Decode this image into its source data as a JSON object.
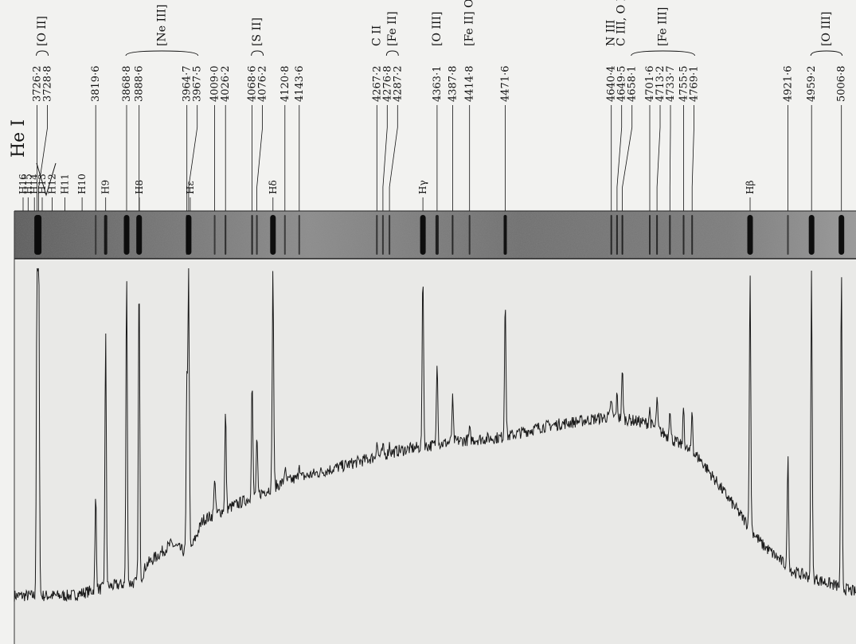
{
  "chart_data": {
    "type": "line",
    "title": "",
    "xlabel": "",
    "ylabel": "",
    "lines": [
      {
        "label": "3726·2",
        "wavelength": 3726.2,
        "ion": "[O II]",
        "peak": 0.99
      },
      {
        "label": "3728·8",
        "wavelength": 3728.8,
        "ion": "[O II]",
        "peak": 0.99
      },
      {
        "label": "3819·6",
        "wavelength": 3819.6,
        "ion": "",
        "peak": 0.34
      },
      {
        "label": "3868·8",
        "wavelength": 3868.8,
        "ion": "[Ne III]",
        "peak": 0.98
      },
      {
        "label": "3888·6",
        "wavelength": 3888.6,
        "ion": "",
        "peak": 0.97
      },
      {
        "label": "3964·7",
        "wavelength": 3964.7,
        "ion": "",
        "peak": 0.66
      },
      {
        "label": "3967·5",
        "wavelength": 3967.5,
        "ion": "[Ne III]",
        "peak": 0.98
      },
      {
        "label": "4009·0",
        "wavelength": 4009.0,
        "ion": "",
        "peak": 0.4
      },
      {
        "label": "4026·2",
        "wavelength": 4026.2,
        "ion": "",
        "peak": 0.58
      },
      {
        "label": "4068·6",
        "wavelength": 4068.6,
        "ion": "[S II]",
        "peak": 0.67
      },
      {
        "label": "4076·2",
        "wavelength": 4076.2,
        "ion": "[S II]",
        "peak": 0.5
      },
      {
        "label": "4120·8",
        "wavelength": 4120.8,
        "ion": "",
        "peak": 0.42
      },
      {
        "label": "4143·6",
        "wavelength": 4143.6,
        "ion": "",
        "peak": 0.44
      },
      {
        "label": "4267·2",
        "wavelength": 4267.2,
        "ion": "C II",
        "peak": 0.5
      },
      {
        "label": "4276·8",
        "wavelength": 4276.8,
        "ion": "[Fe II]",
        "peak": 0.48
      },
      {
        "label": "4287·2",
        "wavelength": 4287.2,
        "ion": "[Fe II]",
        "peak": 0.49
      },
      {
        "label": "4363·1",
        "wavelength": 4363.1,
        "ion": "[O III]",
        "peak": 0.74
      },
      {
        "label": "4387·8",
        "wavelength": 4387.8,
        "ion": "",
        "peak": 0.62
      },
      {
        "label": "4414·8",
        "wavelength": 4414.8,
        "ion": "[Fe II] O II",
        "peak": 0.53
      },
      {
        "label": "4471·6",
        "wavelength": 4471.6,
        "ion": "",
        "peak": 0.92
      },
      {
        "label": "4640·4",
        "wavelength": 4640.4,
        "ion": "N III",
        "peak": 0.62
      },
      {
        "label": "4649·5",
        "wavelength": 4649.5,
        "ion": "C III, O II",
        "peak": 0.63
      },
      {
        "label": "4658·1",
        "wavelength": 4658.1,
        "ion": "[Fe III]",
        "peak": 0.7
      },
      {
        "label": "4701·6",
        "wavelength": 4701.6,
        "ion": "[Fe III]",
        "peak": 0.59
      },
      {
        "label": "4713·2",
        "wavelength": 4713.2,
        "ion": "",
        "peak": 0.62
      },
      {
        "label": "4733·7",
        "wavelength": 4733.7,
        "ion": "[Fe III]",
        "peak": 0.6
      },
      {
        "label": "4755·5",
        "wavelength": 4755.5,
        "ion": "[Fe III]",
        "peak": 0.6
      },
      {
        "label": "4769·1",
        "wavelength": 4769.1,
        "ion": "[Fe III]",
        "peak": 0.59
      },
      {
        "label": "4921·6",
        "wavelength": 4921.6,
        "ion": "",
        "peak": 0.45
      },
      {
        "label": "4959·2",
        "wavelength": 4959.2,
        "ion": "[O III]",
        "peak": 0.98
      },
      {
        "label": "5006·8",
        "wavelength": 5006.8,
        "ion": "[O III]",
        "peak": 0.98
      }
    ],
    "hydrogen": [
      {
        "label": "H16",
        "wavelength": 3703.9
      },
      {
        "label": "H15",
        "wavelength": 3711.97
      },
      {
        "label": "H14",
        "wavelength": 3721.94
      },
      {
        "label": "H13",
        "wavelength": 3734.37
      },
      {
        "label": "H12",
        "wavelength": 3750.15
      },
      {
        "label": "H11",
        "wavelength": 3770.63
      },
      {
        "label": "H10",
        "wavelength": 3797.9
      },
      {
        "label": "H9",
        "wavelength": 3835.39,
        "peak": 0.8
      },
      {
        "label": "H8",
        "wavelength": 3889.05
      },
      {
        "label": "Hε",
        "wavelength": 3970.07
      },
      {
        "label": "Hδ",
        "wavelength": 4101.74,
        "peak": 0.99
      },
      {
        "label": "Hγ",
        "wavelength": 4340.47,
        "peak": 0.99
      },
      {
        "label": "Hβ",
        "wavelength": 4861.33,
        "peak": 0.98
      }
    ],
    "he_label": "He I",
    "xlim": [
      3690,
      5030
    ],
    "continuum": [
      {
        "x": 3690,
        "y": 0.05
      },
      {
        "x": 3780,
        "y": 0.05
      },
      {
        "x": 3850,
        "y": 0.08
      },
      {
        "x": 3890,
        "y": 0.09
      },
      {
        "x": 3900,
        "y": 0.14
      },
      {
        "x": 3940,
        "y": 0.2
      },
      {
        "x": 3968,
        "y": 0.17
      },
      {
        "x": 3990,
        "y": 0.27
      },
      {
        "x": 4050,
        "y": 0.32
      },
      {
        "x": 4120,
        "y": 0.38
      },
      {
        "x": 4200,
        "y": 0.42
      },
      {
        "x": 4300,
        "y": 0.47
      },
      {
        "x": 4400,
        "y": 0.5
      },
      {
        "x": 4470,
        "y": 0.51
      },
      {
        "x": 4530,
        "y": 0.54
      },
      {
        "x": 4640,
        "y": 0.57
      },
      {
        "x": 4700,
        "y": 0.55
      },
      {
        "x": 4780,
        "y": 0.45
      },
      {
        "x": 4840,
        "y": 0.3
      },
      {
        "x": 4880,
        "y": 0.2
      },
      {
        "x": 4930,
        "y": 0.12
      },
      {
        "x": 5030,
        "y": 0.06
      }
    ]
  }
}
